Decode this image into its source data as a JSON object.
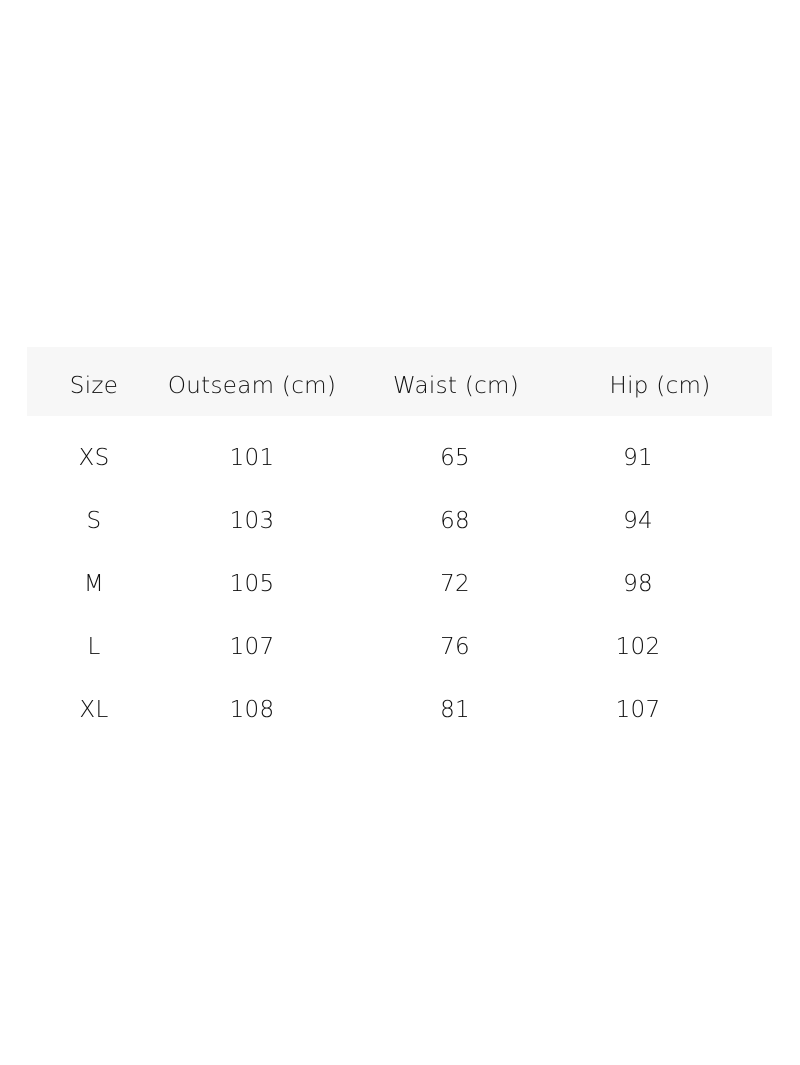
{
  "headers": [
    "Size",
    "Outseam (cm)",
    "Waist (cm)",
    "Hip (cm)"
  ],
  "rows": [
    [
      "XS",
      "101",
      "65",
      "91"
    ],
    [
      "S",
      "103",
      "68",
      "94"
    ],
    [
      "M",
      "105",
      "72",
      "98"
    ],
    [
      "L",
      "107",
      "76",
      "102"
    ],
    [
      "XL",
      "108",
      "81",
      "107"
    ]
  ],
  "colors": {
    "header_background": "#f7f7f7",
    "text": "#111111"
  }
}
